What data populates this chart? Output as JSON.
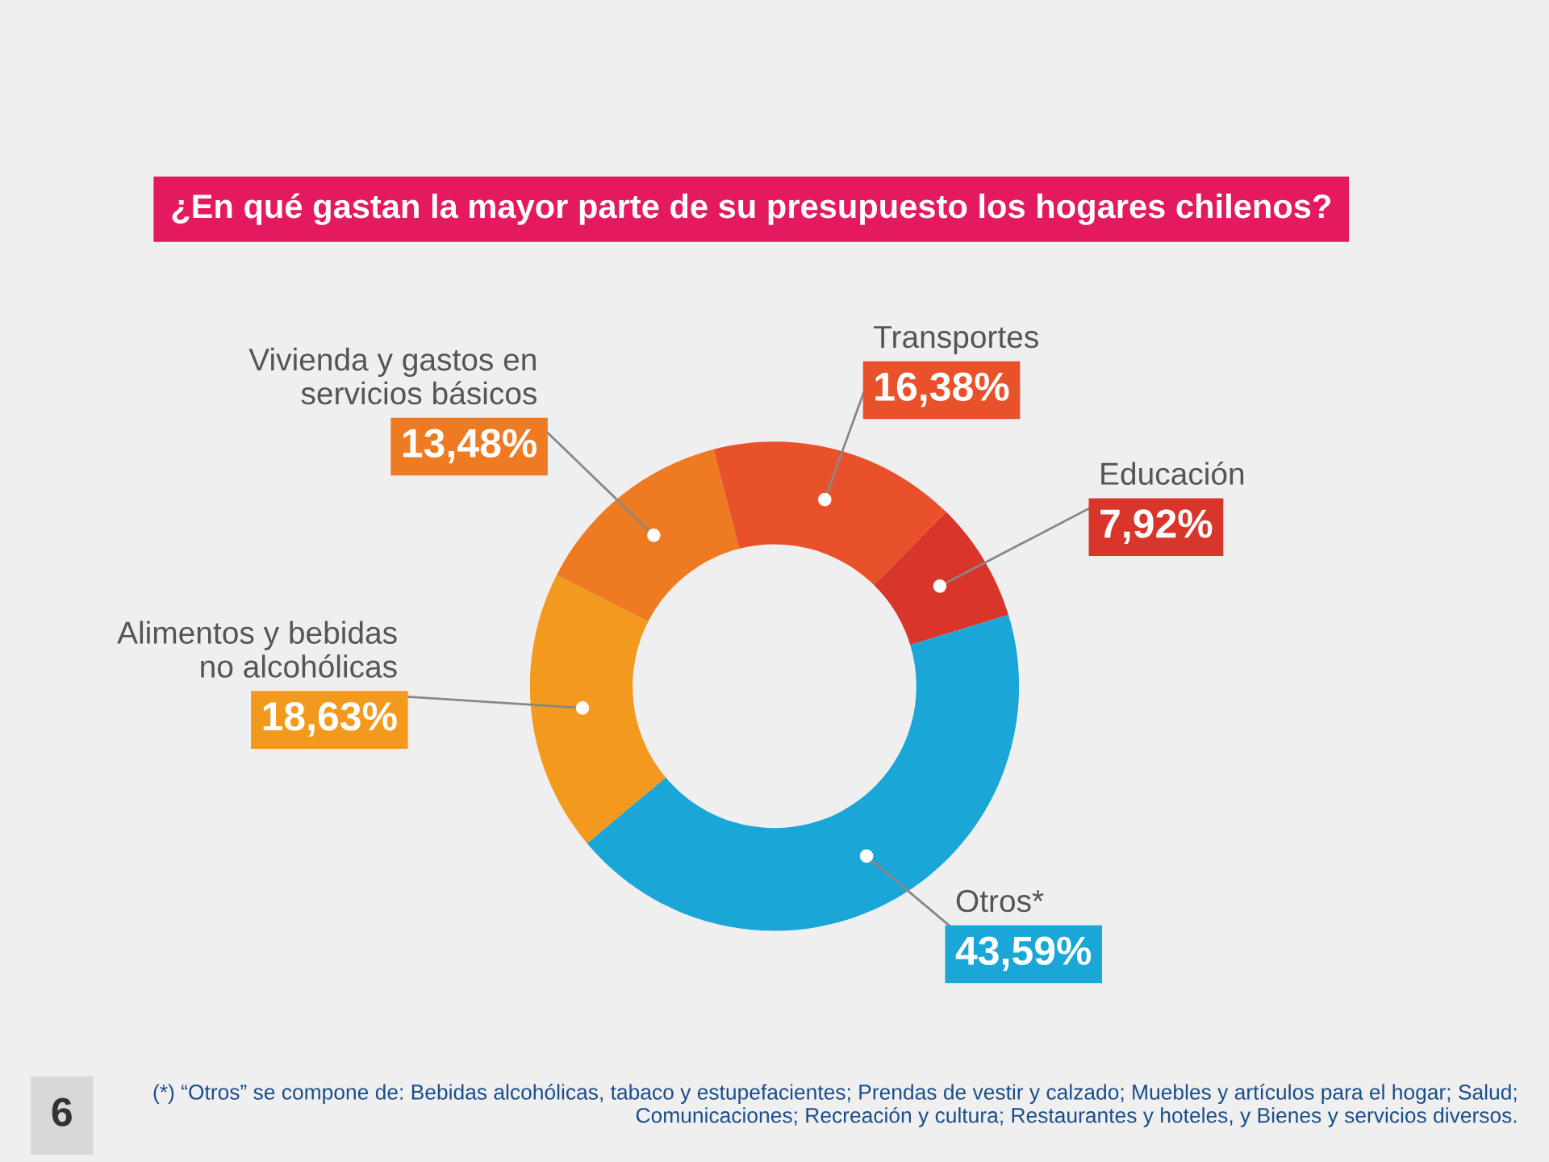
{
  "chart_data": {
    "type": "donut",
    "title": "¿En qué gastan la mayor parte de su presupuesto los hogares chilenos?",
    "categories": [
      "Alimentos y bebidas\nno alcohólicas",
      "Vivienda y gastos en\nservicios básicos",
      "Transportes",
      "Educación",
      "Otros*"
    ],
    "values": [
      18.63,
      13.48,
      16.38,
      7.92,
      43.59
    ],
    "value_labels": [
      "18,63%",
      "13,48%",
      "16,38%",
      "7,92%",
      "43,59%"
    ],
    "colors": [
      "#f39a1e",
      "#ee7a22",
      "#e8512a",
      "#d9352a",
      "#1aa6d6"
    ],
    "legend": false,
    "annotations": [
      "(*) “Otros” se compone de: Bebidas alcohólicas, tabaco y estupefacientes; Prendas de vestir y calzado; Muebles y artículos para el hogar; Salud; Comunicaciones; Recreación y cultura; Restaurantes y hoteles, y Bienes y servicios diversos.",
      "6"
    ]
  }
}
